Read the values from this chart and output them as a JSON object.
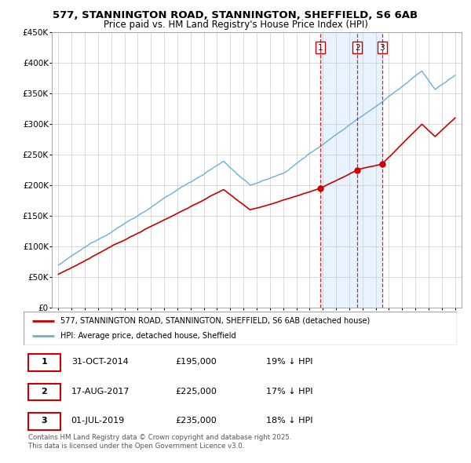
{
  "title": "577, STANNINGTON ROAD, STANNINGTON, SHEFFIELD, S6 6AB",
  "subtitle": "Price paid vs. HM Land Registry's House Price Index (HPI)",
  "ylim": [
    0,
    450000
  ],
  "yticks": [
    0,
    50000,
    100000,
    150000,
    200000,
    250000,
    300000,
    350000,
    400000,
    450000
  ],
  "ytick_labels": [
    "£0",
    "£50K",
    "£100K",
    "£150K",
    "£200K",
    "£250K",
    "£300K",
    "£350K",
    "£400K",
    "£450K"
  ],
  "hpi_color": "#6baed6",
  "price_color": "#cc0000",
  "vline_color": "#cc0000",
  "shade_color": "#ddeeff",
  "sale_dates": [
    2014.83,
    2017.62,
    2019.5
  ],
  "sale_prices": [
    195000,
    225000,
    235000
  ],
  "sale_labels": [
    "1",
    "2",
    "3"
  ],
  "legend_line1": "577, STANNINGTON ROAD, STANNINGTON, SHEFFIELD, S6 6AB (detached house)",
  "legend_line2": "HPI: Average price, detached house, Sheffield",
  "table_rows": [
    [
      "1",
      "31-OCT-2014",
      "£195,000",
      "19% ↓ HPI"
    ],
    [
      "2",
      "17-AUG-2017",
      "£225,000",
      "17% ↓ HPI"
    ],
    [
      "3",
      "01-JUL-2019",
      "£235,000",
      "18% ↓ HPI"
    ]
  ],
  "footnote": "Contains HM Land Registry data © Crown copyright and database right 2025.\nThis data is licensed under the Open Government Licence v3.0.",
  "grid_color": "#cccccc"
}
